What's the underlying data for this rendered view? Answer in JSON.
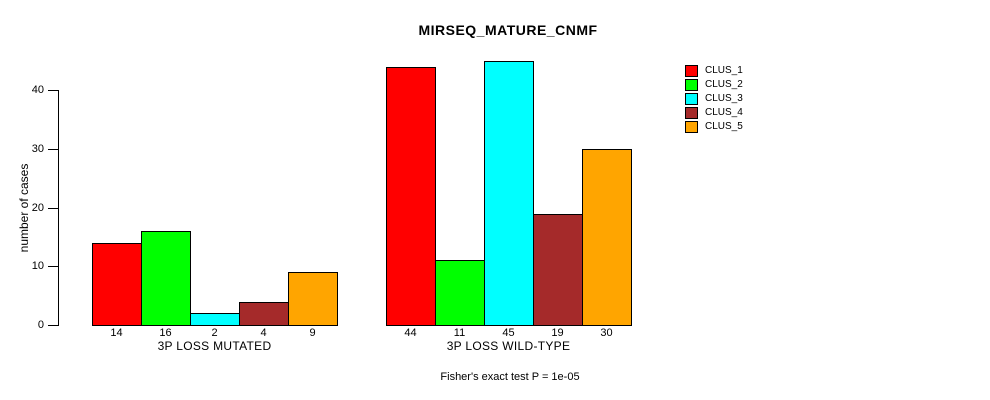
{
  "title": "MIRSEQ_MATURE_CNMF",
  "ylabel": "number of cases",
  "annotation": "Fisher's exact test P = 1e-05",
  "chart_data": {
    "type": "bar",
    "title": "MIRSEQ_MATURE_CNMF",
    "xlabel": "",
    "ylabel": "number of cases",
    "ylim": [
      0,
      45
    ],
    "yticks": [
      0,
      10,
      20,
      30,
      40
    ],
    "grid": false,
    "bar_borders": true,
    "legend_position": "right-outside-top",
    "categories": [
      "3P LOSS MUTATED",
      "3P LOSS WILD-TYPE"
    ],
    "series": [
      {
        "name": "CLUS_1",
        "color": "#ff0000",
        "values": [
          14,
          44
        ]
      },
      {
        "name": "CLUS_2",
        "color": "#00ff00",
        "values": [
          16,
          11
        ]
      },
      {
        "name": "CLUS_3",
        "color": "#00ffff",
        "values": [
          2,
          45
        ]
      },
      {
        "name": "CLUS_4",
        "color": "#a52a2a",
        "values": [
          4,
          19
        ]
      },
      {
        "name": "CLUS_5",
        "color": "#ffa500",
        "values": [
          9,
          30
        ]
      }
    ],
    "bar_value_labels": {
      "3P LOSS MUTATED": [
        14,
        16,
        2,
        4,
        9
      ],
      "3P LOSS WILD-TYPE": [
        44,
        11,
        45,
        19,
        30
      ]
    },
    "annotation": "Fisher's exact test P = 1e-05"
  }
}
